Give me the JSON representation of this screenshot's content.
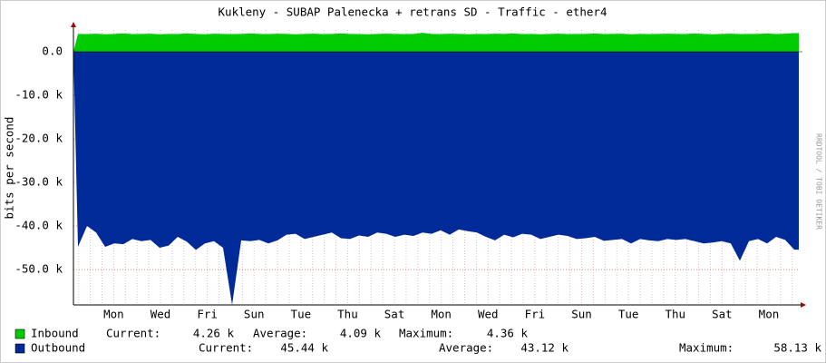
{
  "chart_data": {
    "type": "area",
    "title": "Kukleny - SUBAP Palenecka + retrans SD - Traffic - ether4",
    "ylabel": "bits per second",
    "watermark": "RRDTOOL / TOBI OETIKER",
    "ylim": [
      -58125,
      5000
    ],
    "yticks": [
      {
        "value": 0,
        "label": "0.0"
      },
      {
        "value": -10000,
        "label": "-10.0 k"
      },
      {
        "value": -20000,
        "label": "-20.0 k"
      },
      {
        "value": -30000,
        "label": "-30.0 k"
      },
      {
        "value": -40000,
        "label": "-40.0 k"
      },
      {
        "value": -50000,
        "label": "-50.0 k"
      }
    ],
    "xtick_labels": [
      "Mon",
      "Wed",
      "Fri",
      "Sun",
      "Tue",
      "Thu",
      "Sat",
      "Mon",
      "Wed",
      "Fri",
      "Sun",
      "Tue",
      "Thu",
      "Sat",
      "Mon"
    ],
    "grid": true,
    "series": [
      {
        "name": "Inbound",
        "color": "#00cc00",
        "values": [
          4100,
          4050,
          4150,
          4000,
          4100,
          4200,
          4050,
          4100,
          4150,
          4000,
          4100,
          4050,
          4200,
          4100,
          4000,
          4150,
          4100,
          4050,
          4100,
          4200,
          4100,
          4050,
          4150,
          4100,
          4000,
          4100,
          4150,
          4050,
          4100,
          4200,
          4100,
          4050,
          4000,
          4100,
          4150,
          4100,
          4050,
          4100,
          4360,
          4100,
          4050,
          4150,
          4100,
          4000,
          4100,
          4050,
          4150,
          4100,
          4200,
          4050,
          4100,
          4000,
          4100,
          4150,
          4050,
          4100,
          4100,
          4200,
          4050,
          4100,
          4150,
          4000,
          4100,
          4050,
          4100,
          4150,
          4100,
          4050,
          4200,
          4100,
          4000,
          4100,
          4150,
          4050,
          4100,
          4100,
          4200,
          4050,
          4150,
          4260
        ],
        "stats": [
          {
            "label": "Current:",
            "value": 4260,
            "value_label": "4.26 k"
          },
          {
            "label": "Average:",
            "value": 4090,
            "value_label": "4.09 k"
          },
          {
            "label": "Maximum:",
            "value": 4360,
            "value_label": "4.36 k"
          }
        ]
      },
      {
        "name": "Outbound",
        "color": "#002a97",
        "values": [
          -44800,
          -40000,
          -41500,
          -44800,
          -44000,
          -44200,
          -43000,
          -43500,
          -43200,
          -45000,
          -44500,
          -42500,
          -43600,
          -45500,
          -44000,
          -43500,
          -45000,
          -58130,
          -43300,
          -43500,
          -43200,
          -44000,
          -43300,
          -42000,
          -41800,
          -43000,
          -42500,
          -42000,
          -41500,
          -42800,
          -43000,
          -42200,
          -42500,
          -41500,
          -41800,
          -42500,
          -42000,
          -42300,
          -41500,
          -41800,
          -41000,
          -42000,
          -40800,
          -41200,
          -41500,
          -42500,
          -43300,
          -42000,
          -42600,
          -41800,
          -42000,
          -43000,
          -42500,
          -42000,
          -42300,
          -43000,
          -42800,
          -42500,
          -43400,
          -43200,
          -43000,
          -44000,
          -43000,
          -43300,
          -43500,
          -43000,
          -43200,
          -43000,
          -43500,
          -44000,
          -43800,
          -43500,
          -44000,
          -48000,
          -43500,
          -43000,
          -44000,
          -42500,
          -43200,
          -45440
        ],
        "stats": [
          {
            "label": "Current:",
            "value": 45440,
            "value_label": "45.44 k"
          },
          {
            "label": "Average:",
            "value": 43120,
            "value_label": "43.12 k"
          },
          {
            "label": "Maximum:",
            "value": 58130,
            "value_label": "58.13 k"
          }
        ]
      }
    ]
  }
}
